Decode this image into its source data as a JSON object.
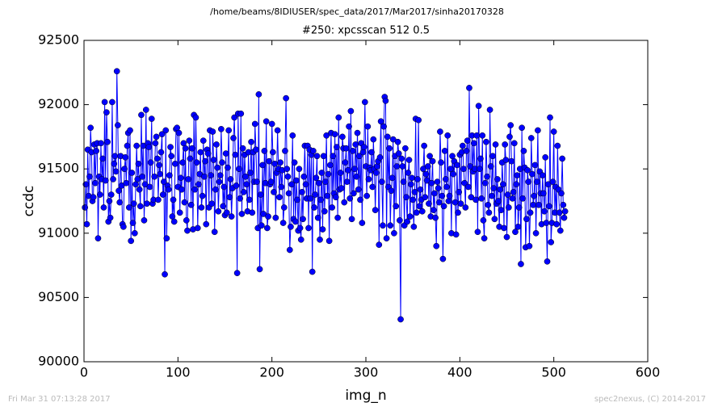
{
  "chart_data": {
    "type": "line",
    "suptitle": "/home/beams/8IDIUSER/spec_data/2017/Mar2017/sinha20170328",
    "title": "#250: xpcsscan 512 0.5",
    "xlabel": "img_n",
    "ylabel": "ccdc",
    "footer_left": "Fri Mar 31 07:13:28 2017",
    "footer_right": "spec2nexus, (C) 2014-2017",
    "xlim": [
      0,
      600
    ],
    "xticks": [
      0,
      100,
      200,
      300,
      400,
      500,
      600
    ],
    "ylim": [
      90000,
      92500
    ],
    "yticks": [
      90000,
      90500,
      91000,
      91500,
      92000,
      92500
    ],
    "grid": false,
    "x": [
      1,
      2,
      3,
      4,
      5,
      6,
      7,
      8,
      9,
      10,
      11,
      12,
      13,
      14,
      15,
      16,
      17,
      18,
      19,
      20,
      21,
      22,
      23,
      24,
      25,
      26,
      27,
      28,
      29,
      30,
      31,
      32,
      33,
      34,
      35,
      36,
      37,
      38,
      39,
      40,
      41,
      42,
      43,
      44,
      45,
      46,
      47,
      48,
      49,
      50,
      51,
      52,
      53,
      54,
      55,
      56,
      57,
      58,
      59,
      60,
      61,
      62,
      63,
      64,
      65,
      66,
      67,
      68,
      69,
      70,
      71,
      72,
      73,
      74,
      75,
      76,
      77,
      78,
      79,
      80,
      81,
      82,
      83,
      84,
      85,
      86,
      87,
      88,
      89,
      90,
      91,
      92,
      93,
      94,
      95,
      96,
      97,
      98,
      99,
      100,
      101,
      102,
      103,
      104,
      105,
      106,
      107,
      108,
      109,
      110,
      111,
      112,
      113,
      114,
      115,
      116,
      117,
      118,
      119,
      120,
      121,
      122,
      123,
      124,
      125,
      126,
      127,
      128,
      129,
      130,
      131,
      132,
      133,
      134,
      135,
      136,
      137,
      138,
      139,
      140,
      141,
      142,
      143,
      144,
      145,
      146,
      147,
      148,
      149,
      150,
      151,
      152,
      153,
      154,
      155,
      156,
      157,
      158,
      159,
      160,
      161,
      162,
      163,
      164,
      165,
      166,
      167,
      168,
      169,
      170,
      171,
      172,
      173,
      174,
      175,
      176,
      177,
      178,
      179,
      180,
      181,
      182,
      183,
      184,
      185,
      186,
      187,
      188,
      189,
      190,
      191,
      192,
      193,
      194,
      195,
      196,
      197,
      198,
      199,
      200,
      201,
      202,
      203,
      204,
      205,
      206,
      207,
      208,
      209,
      210,
      211,
      212,
      213,
      214,
      215,
      216,
      217,
      218,
      219,
      220,
      221,
      222,
      223,
      224,
      225,
      226,
      227,
      228,
      229,
      230,
      231,
      232,
      233,
      234,
      235,
      236,
      237,
      238,
      239,
      240,
      241,
      242,
      243,
      244,
      245,
      246,
      247,
      248,
      249,
      250,
      251,
      252,
      253,
      254,
      255,
      256,
      257,
      258,
      259,
      260,
      261,
      262,
      263,
      264,
      265,
      266,
      267,
      268,
      269,
      270,
      271,
      272,
      273,
      274,
      275,
      276,
      277,
      278,
      279,
      280,
      281,
      282,
      283,
      284,
      285,
      286,
      287,
      288,
      289,
      290,
      291,
      292,
      293,
      294,
      295,
      296,
      297,
      298,
      299,
      300,
      301,
      302,
      303,
      304,
      305,
      306,
      307,
      308,
      309,
      310,
      311,
      312,
      313,
      314,
      315,
      316,
      317,
      318,
      319,
      320,
      321,
      322,
      323,
      324,
      325,
      326,
      327,
      328,
      329,
      330,
      331,
      332,
      333,
      334,
      335,
      336,
      337,
      338,
      339,
      340,
      341,
      342,
      343,
      344,
      345,
      346,
      347,
      348,
      349,
      350,
      351,
      352,
      353,
      354,
      355,
      356,
      357,
      358,
      359,
      360,
      361,
      362,
      363,
      364,
      365,
      366,
      367,
      368,
      369,
      370,
      371,
      372,
      373,
      374,
      375,
      376,
      377,
      378,
      379,
      380,
      381,
      382,
      383,
      384,
      385,
      386,
      387,
      388,
      389,
      390,
      391,
      392,
      393,
      394,
      395,
      396,
      397,
      398,
      399,
      400,
      401,
      402,
      403,
      404,
      405,
      406,
      407,
      408,
      409,
      410,
      411,
      412,
      413,
      414,
      415,
      416,
      417,
      418,
      419,
      420,
      421,
      422,
      423,
      424,
      425,
      426,
      427,
      428,
      429,
      430,
      431,
      432,
      433,
      434,
      435,
      436,
      437,
      438,
      439,
      440,
      441,
      442,
      443,
      444,
      445,
      446,
      447,
      448,
      449,
      450,
      451,
      452,
      453,
      454,
      455,
      456,
      457,
      458,
      459,
      460,
      461,
      462,
      463,
      464,
      465,
      466,
      467,
      468,
      469,
      470,
      471,
      472,
      473,
      474,
      475,
      476,
      477,
      478,
      479,
      480,
      481,
      482,
      483,
      484,
      485,
      486,
      487,
      488,
      489,
      490,
      491,
      492,
      493,
      494,
      495,
      496,
      497,
      498,
      499,
      500,
      501,
      502,
      503,
      504,
      505,
      506,
      507,
      508,
      509,
      510,
      511,
      512
    ],
    "series": [
      {
        "name": "ccdc",
        "color": "#0000ff",
        "values": [
          91200,
          91380,
          91070,
          91650,
          91290,
          91440,
          91820,
          91630,
          91250,
          91280,
          91690,
          91390,
          91640,
          91700,
          90960,
          91440,
          91300,
          91700,
          91420,
          91580,
          91200,
          92020,
          91410,
          91940,
          91710,
          91090,
          91250,
          91120,
          91300,
          92020,
          91420,
          91540,
          91600,
          91480,
          92260,
          91840,
          91330,
          91240,
          91600,
          91370,
          91070,
          91050,
          91500,
          91590,
          91390,
          91680,
          91780,
          91200,
          91800,
          90940,
          91470,
          91080,
          91230,
          91000,
          91380,
          91680,
          91420,
          91540,
          91340,
          91210,
          91920,
          91440,
          91680,
          91100,
          91380,
          91960,
          91230,
          91700,
          91670,
          91360,
          91550,
          91890,
          91230,
          91260,
          91440,
          91700,
          91750,
          91580,
          91260,
          91530,
          91460,
          91630,
          91770,
          91300,
          91400,
          90680,
          91800,
          90960,
          91370,
          91340,
          91450,
          91670,
          91600,
          91130,
          91260,
          91090,
          91540,
          91810,
          91820,
          91360,
          91780,
          91160,
          91430,
          91340,
          91550,
          91700,
          91240,
          91660,
          91100,
          91020,
          91420,
          91720,
          91580,
          91220,
          91660,
          91030,
          91920,
          91340,
          91900,
          91550,
          91040,
          91380,
          91460,
          91630,
          91200,
          91290,
          91720,
          91440,
          91560,
          91070,
          91650,
          91620,
          91200,
          91800,
          91450,
          91230,
          91790,
          91570,
          91010,
          91340,
          91690,
          91510,
          91170,
          91400,
          91450,
          91810,
          91550,
          91210,
          91360,
          91140,
          91620,
          91160,
          91510,
          91800,
          91280,
          91420,
          91130,
          91350,
          91740,
          91900,
          91610,
          91370,
          90690,
          91930,
          91500,
          91270,
          91930,
          91150,
          91660,
          91320,
          91610,
          91440,
          91380,
          91170,
          91630,
          91260,
          91470,
          91710,
          91160,
          91630,
          91400,
          91850,
          91650,
          91400,
          91040,
          92080,
          90720,
          91300,
          91060,
          91530,
          91150,
          91640,
          91390,
          91870,
          91040,
          91130,
          91560,
          91380,
          91400,
          91850,
          91630,
          91320,
          91540,
          91120,
          91470,
          91800,
          91500,
          91280,
          91550,
          91360,
          91490,
          91080,
          91200,
          91640,
          92050,
          91500,
          91440,
          91310,
          90870,
          91050,
          91380,
          91760,
          91110,
          91550,
          91090,
          91410,
          91260,
          91020,
          91500,
          91040,
          90950,
          91320,
          91110,
          91440,
          91680,
          91380,
          91270,
          91680,
          91040,
          91650,
          91270,
          91610,
          90700,
          91640,
          91200,
          91300,
          91430,
          91600,
          91120,
          91390,
          90950,
          91260,
          91470,
          91030,
          91600,
          91170,
          91400,
          91760,
          91290,
          91460,
          90940,
          91530,
          91780,
          91200,
          91600,
          91310,
          91770,
          91280,
          91670,
          91120,
          91900,
          91340,
          91470,
          91350,
          91750,
          91660,
          91240,
          91550,
          91660,
          91400,
          91490,
          91830,
          91270,
          91950,
          91110,
          91640,
          91310,
          91500,
          91690,
          91440,
          91780,
          91340,
          91600,
          91260,
          91700,
          91080,
          91630,
          91670,
          92020,
          91520,
          91290,
          91830,
          91420,
          91510,
          91490,
          91630,
          91360,
          91730,
          91500,
          91180,
          91470,
          91520,
          91560,
          90910,
          91590,
          91870,
          91400,
          91060,
          91830,
          92060,
          92030,
          90960,
          91750,
          91360,
          91660,
          91060,
          91330,
          91430,
          91730,
          91000,
          91600,
          91210,
          91520,
          91710,
          91620,
          91100,
          90330,
          91580,
          91520,
          91400,
          91060,
          91660,
          91280,
          91090,
          91470,
          91570,
          91130,
          91380,
          91430,
          91260,
          91050,
          91320,
          91890,
          91160,
          91420,
          91880,
          91210,
          91340,
          91260,
          91170,
          91500,
          91680,
          91280,
          91460,
          91410,
          91520,
          91230,
          91600,
          91130,
          91390,
          91560,
          91180,
          91310,
          91120,
          90900,
          91400,
          91350,
          91240,
          91790,
          91550,
          91290,
          90800,
          91210,
          91640,
          91420,
          91360,
          91760,
          91250,
          91290,
          91500,
          91000,
          91600,
          91460,
          91560,
          91240,
          90990,
          91530,
          91160,
          91320,
          91610,
          91230,
          91630,
          91680,
          91500,
          91390,
          91200,
          91640,
          91720,
          91360,
          92130,
          91520,
          91280,
          91760,
          91480,
          91700,
          91500,
          91260,
          91760,
          91010,
          91990,
          91500,
          91580,
          91270,
          91760,
          91100,
          90960,
          91390,
          91710,
          91440,
          91220,
          91160,
          91960,
          91520,
          91290,
          91600,
          91350,
          91110,
          91690,
          91230,
          91420,
          91250,
          91050,
          91340,
          91180,
          91550,
          91380,
          91040,
          91690,
          91570,
          90970,
          91300,
          91200,
          91750,
          91840,
          91560,
          91270,
          91320,
          91700,
          91010,
          91380,
          91450,
          91050,
          91200,
          91500,
          90760,
          91820,
          91270,
          91640,
          91510,
          90890,
          91110,
          91490,
          91400,
          90900,
          91160,
          91740,
          91460,
          91220,
          91290,
          91530,
          91000,
          91400,
          91800,
          91220,
          91480,
          91310,
          91070,
          91450,
          91310,
          91170,
          91590,
          91080,
          90780,
          91380,
          91210,
          91900,
          90930,
          91080,
          91400,
          91790,
          91160,
          91360,
          91070,
          91680,
          91340,
          91160,
          91020,
          91310,
          91580,
          91220,
          91120,
          91170
        ]
      }
    ]
  }
}
